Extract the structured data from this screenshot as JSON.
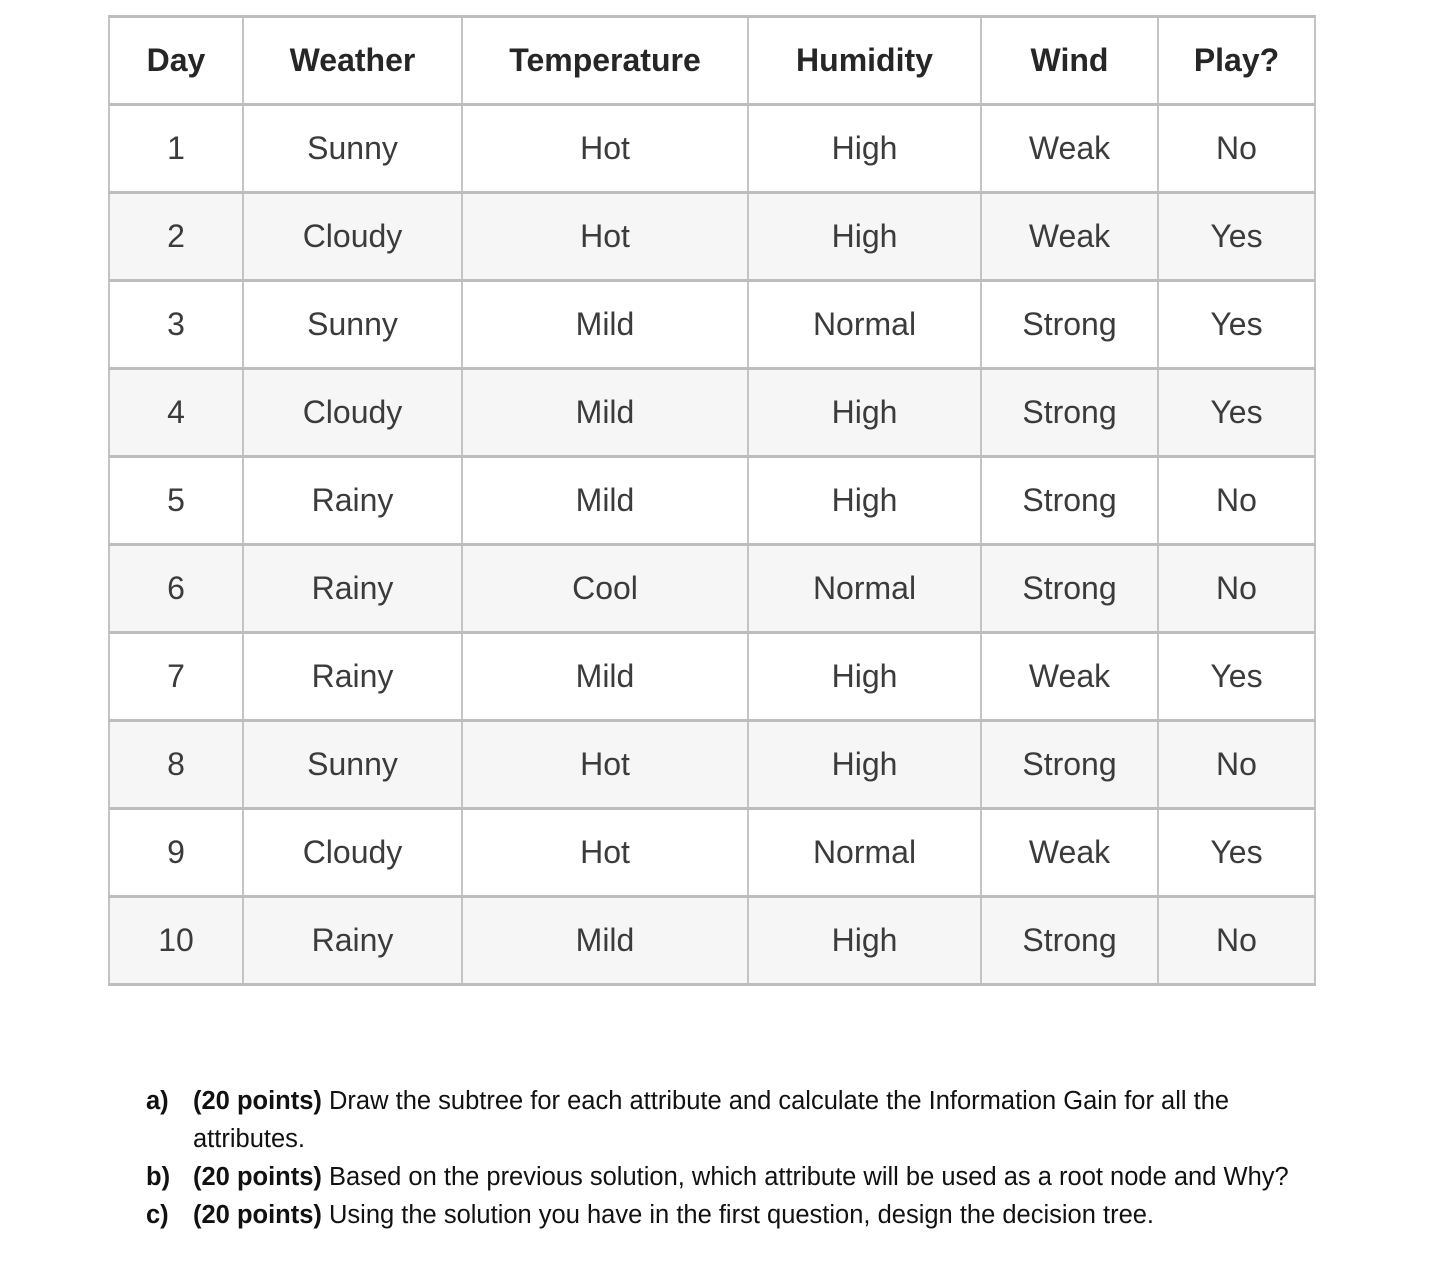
{
  "table": {
    "headers": [
      "Day",
      "Weather",
      "Temperature",
      "Humidity",
      "Wind",
      "Play?"
    ],
    "rows": [
      [
        "1",
        "Sunny",
        "Hot",
        "High",
        "Weak",
        "No"
      ],
      [
        "2",
        "Cloudy",
        "Hot",
        "High",
        "Weak",
        "Yes"
      ],
      [
        "3",
        "Sunny",
        "Mild",
        "Normal",
        "Strong",
        "Yes"
      ],
      [
        "4",
        "Cloudy",
        "Mild",
        "High",
        "Strong",
        "Yes"
      ],
      [
        "5",
        "Rainy",
        "Mild",
        "High",
        "Strong",
        "No"
      ],
      [
        "6",
        "Rainy",
        "Cool",
        "Normal",
        "Strong",
        "No"
      ],
      [
        "7",
        "Rainy",
        "Mild",
        "High",
        "Weak",
        "Yes"
      ],
      [
        "8",
        "Sunny",
        "Hot",
        "High",
        "Strong",
        "No"
      ],
      [
        "9",
        "Cloudy",
        "Hot",
        "Normal",
        "Weak",
        "Yes"
      ],
      [
        "10",
        "Rainy",
        "Mild",
        "High",
        "Strong",
        "No"
      ]
    ],
    "style": {
      "border_color": "#bdbdbd",
      "stripe_color": "#f6f6f6",
      "header_text_color": "#262626",
      "body_text_color": "#3b3b3b"
    }
  },
  "questions": [
    {
      "label": "a)",
      "points": "(20 points)",
      "text": "Draw the subtree for each attribute and calculate the Information Gain for all the attributes."
    },
    {
      "label": "b)",
      "points": "(20 points)",
      "text": "Based on the previous solution, which attribute will be used as a root node and Why?"
    },
    {
      "label": "c)",
      "points": "(20 points)",
      "text": "Using the solution you have in the first question, design the decision tree."
    }
  ]
}
